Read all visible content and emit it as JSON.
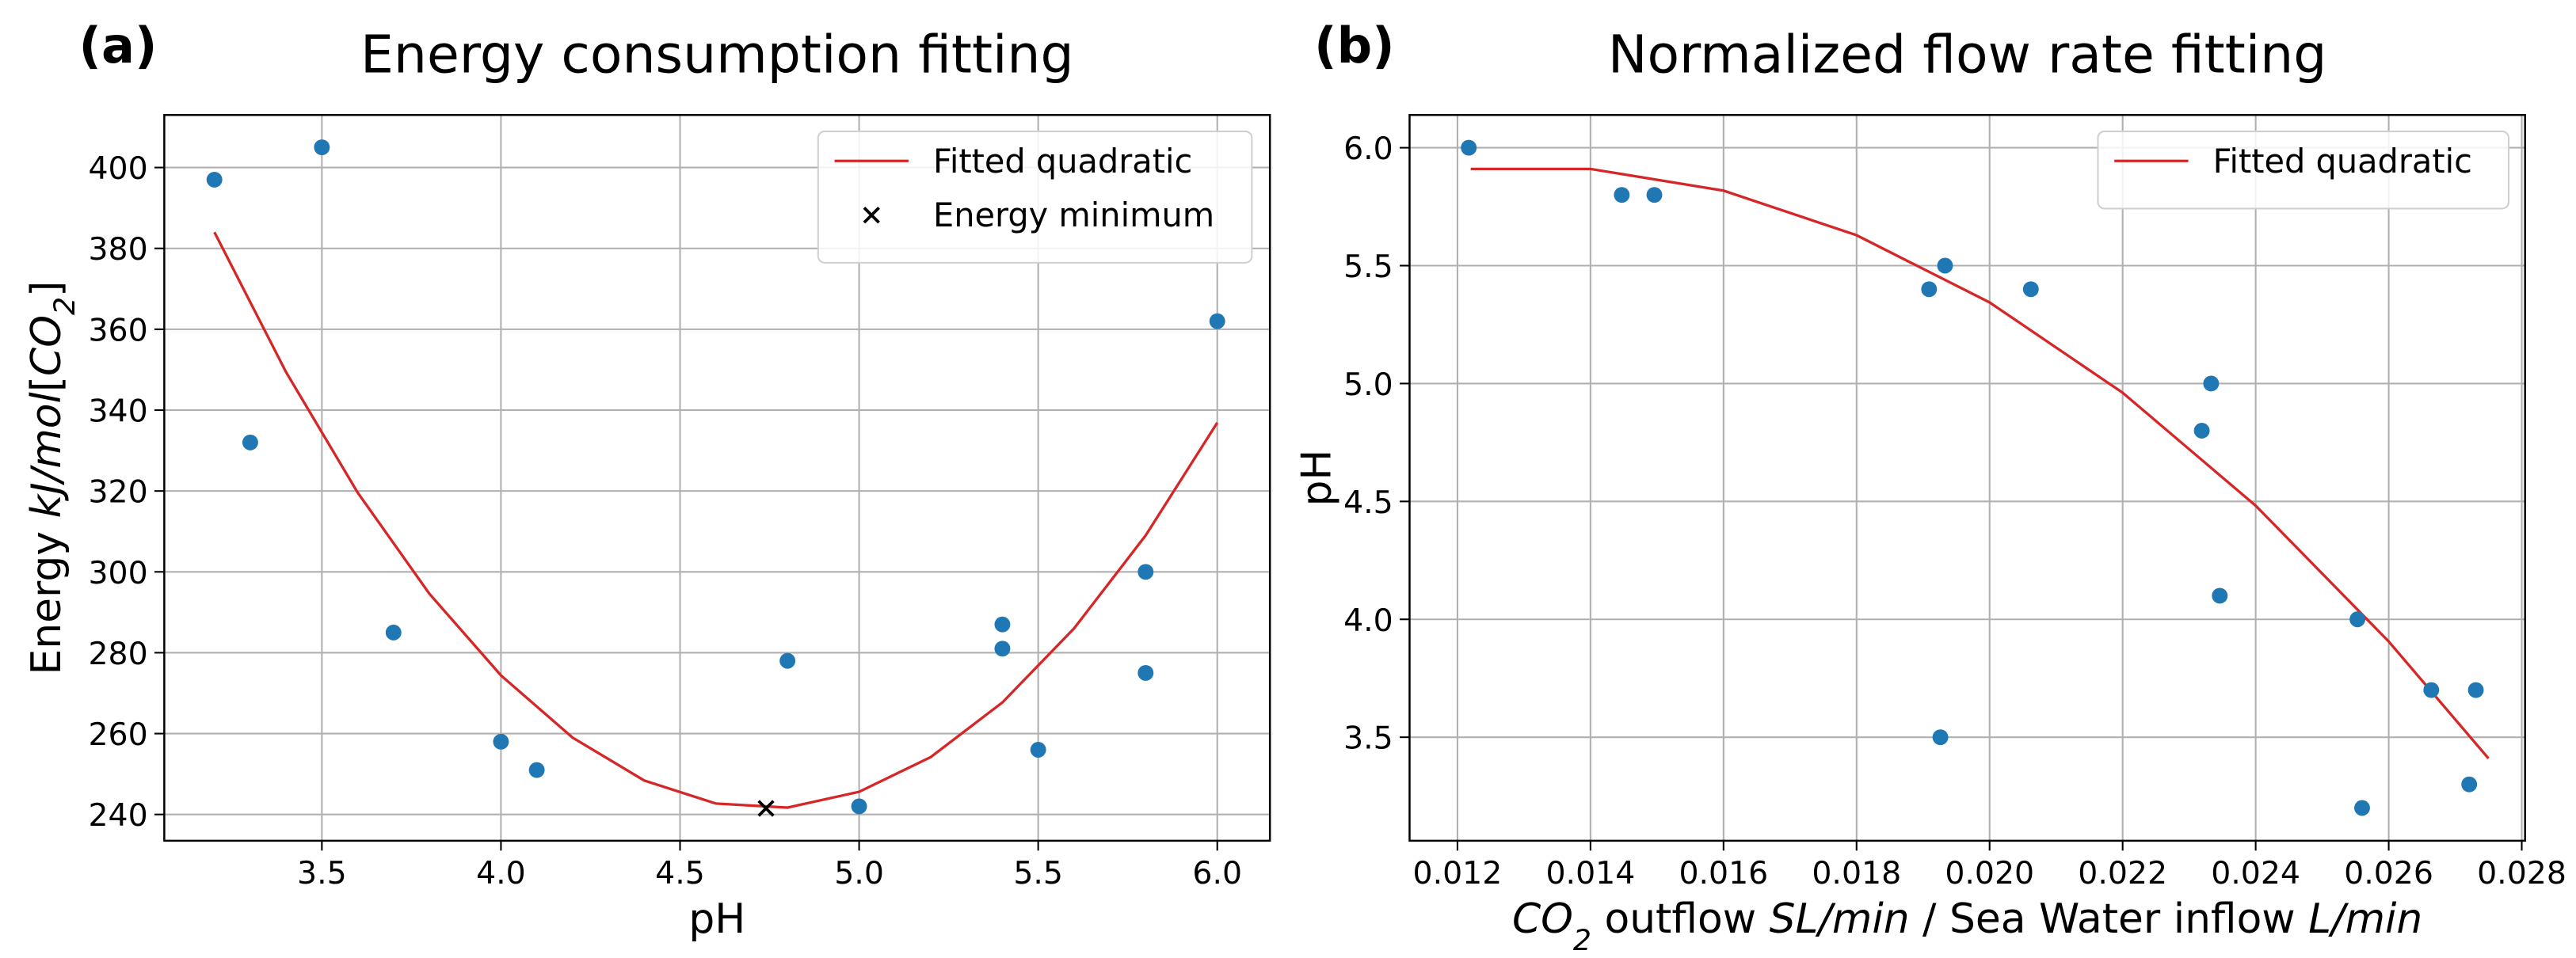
{
  "chart_data": [
    {
      "type": "scatter",
      "panel_label": "(a)",
      "title": "Energy consumption fitting",
      "x_label": [
        "pH"
      ],
      "y_label": [
        "Energy ",
        "kJ/mol",
        "[",
        "CO",
        "2",
        "]"
      ],
      "xlim": [
        3.06,
        6.147
      ],
      "ylim": [
        233.5,
        413
      ],
      "xticks": [
        3.5,
        {
          "value": 4,
          "label": "4.0"
        },
        4.5,
        {
          "value": 5,
          "label": "5.0"
        },
        5.5,
        {
          "value": 6,
          "label": "6.0"
        }
      ],
      "yticks": [
        240,
        260,
        280,
        300,
        320,
        340,
        360,
        380,
        400
      ],
      "grid": true,
      "legend": "upper right",
      "series": [
        {
          "type": "line",
          "name": "Fitted quadratic",
          "color": "#d62728",
          "x": [
            3.2,
            3.4,
            3.6,
            3.8,
            4.0,
            4.2,
            4.4,
            4.6,
            4.8,
            5.0,
            5.2,
            5.4,
            5.6,
            5.8,
            6.0
          ],
          "values": [
            384.0,
            349.4,
            319.6,
            294.6,
            274.4,
            259.0,
            248.4,
            242.7,
            241.7,
            245.6,
            254.2,
            267.7,
            286.0,
            309.0,
            336.9
          ]
        },
        {
          "type": "scatter",
          "color": "#1f77b4",
          "x": [
            3.2,
            3.3,
            3.5,
            3.7,
            4.0,
            4.1,
            4.8,
            5.0,
            5.4,
            5.4,
            5.5,
            5.8,
            5.8,
            6.0
          ],
          "values": [
            397,
            332,
            405,
            285,
            258,
            251,
            278,
            242,
            287,
            281,
            256,
            300,
            275,
            362
          ]
        },
        {
          "type": "scatter",
          "marker": "x",
          "name": "Energy minimum",
          "color": "#000000",
          "x": [
            4.74
          ],
          "values": [
            241.5
          ]
        }
      ]
    },
    {
      "type": "scatter",
      "panel_label": "(b)",
      "title": "Normalized flow rate fitting",
      "x_label": [
        "CO",
        "2",
        " outflow ",
        "SL/min",
        " / Sea Water inflow ",
        "L/min"
      ],
      "y_label": [
        "pH"
      ],
      "xlim": [
        0.01128,
        0.02805
      ],
      "ylim": [
        3.061,
        6.139
      ],
      "xticks": [
        0.012,
        0.014,
        0.016,
        0.018,
        {
          "value": 0.02,
          "label": "0.020"
        },
        0.022,
        0.024,
        0.026,
        0.028
      ],
      "yticks": [
        {
          "value": 3.5,
          "label": "3.5"
        },
        {
          "value": 4,
          "label": "4.0"
        },
        4.5,
        {
          "value": 5,
          "label": "5.0"
        },
        5.5,
        {
          "value": 6,
          "label": "6.0"
        }
      ],
      "grid": true,
      "legend": "upper right",
      "series": [
        {
          "type": "line",
          "name": "Fitted quadratic",
          "color": "#d62728",
          "x": [
            0.0122,
            0.014,
            0.016,
            0.018,
            0.02,
            0.022,
            0.024,
            0.026,
            0.0275
          ],
          "values": [
            5.91,
            5.91,
            5.818,
            5.629,
            5.344,
            4.961,
            4.482,
            3.906,
            3.41
          ]
        },
        {
          "type": "scatter",
          "color": "#1f77b4",
          "x": [
            0.01217,
            0.01447,
            0.01496,
            0.01909,
            0.01933,
            0.01926,
            0.02062,
            0.02319,
            0.02333,
            0.02346,
            0.02553,
            0.0256,
            0.02664,
            0.02721,
            0.02731
          ],
          "values": [
            6.0,
            5.8,
            5.8,
            5.4,
            5.5,
            3.5,
            5.4,
            4.8,
            5.0,
            4.1,
            4.0,
            3.2,
            3.7,
            3.3,
            3.7
          ]
        }
      ]
    }
  ]
}
